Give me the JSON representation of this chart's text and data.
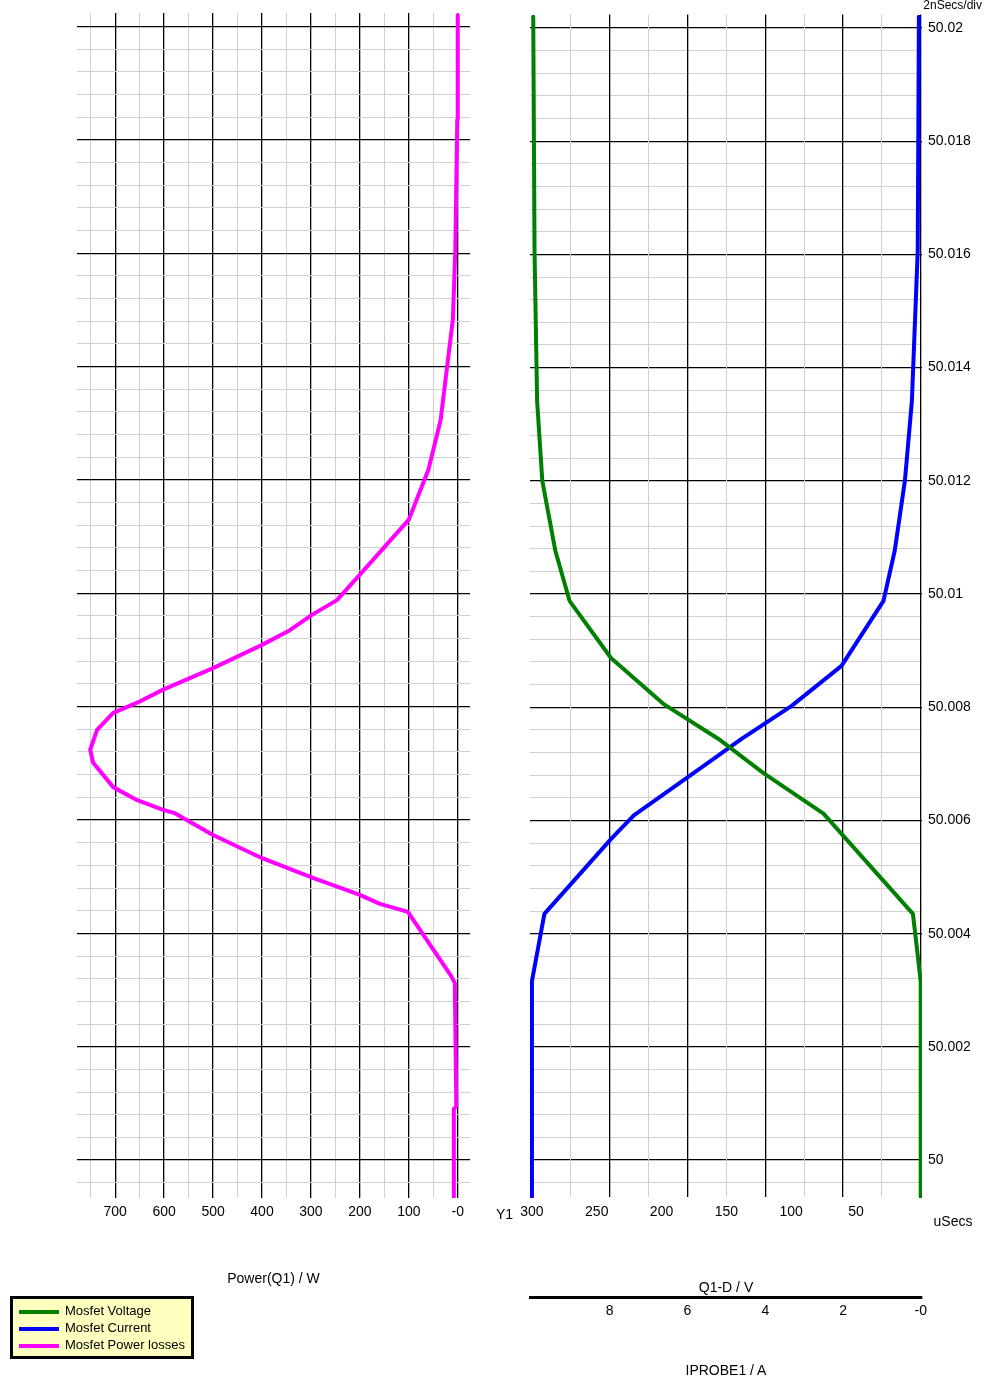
{
  "chart_data": [
    {
      "type": "line",
      "orientation": "horizontal",
      "xlabel": "Power(Q1) / W",
      "legend": "bottom left",
      "grid": true,
      "tick_labels": "x",
      "xlim": [
        778,
        -25
      ],
      "ylim": [
        49.99933,
        50.02024
      ],
      "xticks": [
        {
          "value": 0,
          "label": "-0"
        },
        {
          "value": 50,
          "label": null
        },
        100,
        {
          "value": 150,
          "label": null
        },
        200,
        {
          "value": 250,
          "label": null
        },
        300,
        {
          "value": 350,
          "label": null
        },
        400,
        {
          "value": 450,
          "label": null
        },
        500,
        {
          "value": 550,
          "label": null
        },
        600,
        {
          "value": 650,
          "label": null
        },
        700,
        {
          "value": 750,
          "label": null
        }
      ],
      "yticks": [
        {
          "value": 49.9996,
          "label": null
        },
        50,
        {
          "value": 50.0004,
          "label": null
        },
        {
          "value": 50.0008,
          "label": null
        },
        {
          "value": 50.0012,
          "label": null
        },
        {
          "value": 50.0016,
          "label": null
        },
        50.002,
        {
          "value": 50.0024,
          "label": null
        },
        {
          "value": 50.0028,
          "label": null
        },
        {
          "value": 50.0032,
          "label": null
        },
        {
          "value": 50.0036,
          "label": null
        },
        50.004,
        {
          "value": 50.0044,
          "label": null
        },
        {
          "value": 50.0048,
          "label": null
        },
        {
          "value": 50.0052,
          "label": null
        },
        {
          "value": 50.0056,
          "label": null
        },
        50.006,
        {
          "value": 50.0064,
          "label": null
        },
        {
          "value": 50.0068,
          "label": null
        },
        {
          "value": 50.0072,
          "label": null
        },
        {
          "value": 50.0076,
          "label": null
        },
        50.008,
        {
          "value": 50.0084,
          "label": null
        },
        {
          "value": 50.0088,
          "label": null
        },
        {
          "value": 50.0092,
          "label": null
        },
        {
          "value": 50.0096,
          "label": null
        },
        50.01,
        {
          "value": 50.0104,
          "label": null
        },
        {
          "value": 50.0108,
          "label": null
        },
        {
          "value": 50.0112,
          "label": null
        },
        {
          "value": 50.0116,
          "label": null
        },
        50.012,
        {
          "value": 50.0124,
          "label": null
        },
        {
          "value": 50.0128,
          "label": null
        },
        {
          "value": 50.0132,
          "label": null
        },
        {
          "value": 50.0136,
          "label": null
        },
        50.014,
        {
          "value": 50.0144,
          "label": null
        },
        {
          "value": 50.0148,
          "label": null
        },
        {
          "value": 50.0152,
          "label": null
        },
        {
          "value": 50.0156,
          "label": null
        },
        50.016,
        {
          "value": 50.0164,
          "label": null
        },
        {
          "value": 50.0168,
          "label": null
        },
        {
          "value": 50.0172,
          "label": null
        },
        {
          "value": 50.0176,
          "label": null
        },
        50.018,
        {
          "value": 50.0184,
          "label": null
        },
        {
          "value": 50.0188,
          "label": null
        },
        {
          "value": 50.0192,
          "label": null
        },
        {
          "value": 50.0196,
          "label": null
        },
        50.02
      ],
      "series": [
        {
          "name": "Mosfet Power losses",
          "color": "#ff00ff",
          "x": [
            49.99935,
            50.0009,
            50.00095,
            50.00312,
            50.00324,
            50.00438,
            50.00452,
            50.00468,
            50.00498,
            50.00533,
            50.00574,
            50.00612,
            50.00618,
            50.00635,
            50.00658,
            50.00701,
            50.00724,
            50.00759,
            50.00789,
            50.00807,
            50.0083,
            50.00868,
            50.00909,
            50.00935,
            50.00962,
            50.00988,
            50.01033,
            50.0113,
            50.01218,
            50.01306,
            50.01483,
            50.01606,
            50.01836,
            50.0202
          ],
          "values": [
            8,
            8,
            3,
            6,
            13,
            102,
            159,
            200,
            296,
            401,
            501,
            578,
            602,
            655,
            704,
            745,
            751,
            737,
            704,
            655,
            602,
            500,
            400,
            343,
            298,
            247,
            200,
            100,
            60,
            35,
            10,
            5,
            1,
            0
          ]
        }
      ]
    },
    {
      "type": "line",
      "orientation": "horizontal",
      "xlabel": "Q1-D / V",
      "x2label": "IPROBE1 / A",
      "ylabel": "uSecs",
      "legend": "bottom left",
      "grid": true,
      "annotations": [
        "Y1",
        "2nSecs/div"
      ],
      "xlim": [
        301.5,
        -1
      ],
      "x2lim": [
        10.05,
        -0.03
      ],
      "ylim": [
        49.99933,
        50.02024
      ],
      "xticks": [
        50,
        100,
        150,
        200,
        250,
        300
      ],
      "x2ticks": [
        {
          "value": 0,
          "label": "-0"
        },
        {
          "value": 1,
          "label": null
        },
        2,
        {
          "value": 3,
          "label": null
        },
        4,
        {
          "value": 5,
          "label": null
        },
        6,
        {
          "value": 7,
          "label": null
        },
        8,
        {
          "value": 9,
          "label": null
        }
      ],
      "yticks": [
        {
          "value": 49.9996,
          "label": null
        },
        50,
        {
          "value": 50.0004,
          "label": null
        },
        {
          "value": 50.0008,
          "label": null
        },
        {
          "value": 50.0012,
          "label": null
        },
        {
          "value": 50.0016,
          "label": null
        },
        50.002,
        {
          "value": 50.0024,
          "label": null
        },
        {
          "value": 50.0028,
          "label": null
        },
        {
          "value": 50.0032,
          "label": null
        },
        {
          "value": 50.0036,
          "label": null
        },
        50.004,
        {
          "value": 50.0044,
          "label": null
        },
        {
          "value": 50.0048,
          "label": null
        },
        {
          "value": 50.0052,
          "label": null
        },
        {
          "value": 50.0056,
          "label": null
        },
        50.006,
        {
          "value": 50.0064,
          "label": null
        },
        {
          "value": 50.0068,
          "label": null
        },
        {
          "value": 50.0072,
          "label": null
        },
        {
          "value": 50.0076,
          "label": null
        },
        50.008,
        {
          "value": 50.0084,
          "label": null
        },
        {
          "value": 50.0088,
          "label": null
        },
        {
          "value": 50.0092,
          "label": null
        },
        {
          "value": 50.0096,
          "label": null
        },
        50.01,
        {
          "value": 50.0104,
          "label": null
        },
        {
          "value": 50.0108,
          "label": null
        },
        {
          "value": 50.0112,
          "label": null
        },
        {
          "value": 50.0116,
          "label": null
        },
        50.012,
        {
          "value": 50.0124,
          "label": null
        },
        {
          "value": 50.0128,
          "label": null
        },
        {
          "value": 50.0132,
          "label": null
        },
        {
          "value": 50.0136,
          "label": null
        },
        50.014,
        {
          "value": 50.0144,
          "label": null
        },
        {
          "value": 50.0148,
          "label": null
        },
        {
          "value": 50.0152,
          "label": null
        },
        {
          "value": 50.0156,
          "label": null
        },
        50.016,
        {
          "value": 50.0164,
          "label": null
        },
        {
          "value": 50.0168,
          "label": null
        },
        {
          "value": 50.0172,
          "label": null
        },
        {
          "value": 50.0176,
          "label": null
        },
        50.018,
        {
          "value": 50.0184,
          "label": null
        },
        {
          "value": 50.0188,
          "label": null
        },
        {
          "value": 50.0192,
          "label": null
        },
        {
          "value": 50.0196,
          "label": null
        },
        50.02
      ],
      "series": [
        {
          "name": "Mosfet Voltage",
          "color": "#008000",
          "x": [
            49.99935,
            50.00316,
            50.00435,
            50.00612,
            50.00683,
            50.00744,
            50.00805,
            50.00887,
            50.00988,
            50.01077,
            50.012,
            50.01341,
            50.01606,
            50.0202
          ],
          "values": [
            0,
            0,
            6,
            75,
            121,
            156,
            198,
            239,
            271,
            282,
            292,
            296,
            298,
            299
          ]
        },
        {
          "name": "Mosfet Current",
          "color": "#0000ff",
          "axis": "x2",
          "x": [
            49.99935,
            50.00316,
            50.00435,
            50.00567,
            50.00609,
            50.00676,
            50.00744,
            50.00802,
            50.00873,
            50.00988,
            50.01077,
            50.012,
            50.01341,
            50.01606,
            50.0202
          ],
          "values": [
            10,
            10,
            9.68,
            7.97,
            7.38,
            6.0,
            4.61,
            3.33,
            2.04,
            0.96,
            0.67,
            0.41,
            0.23,
            0.08,
            0.05
          ]
        }
      ]
    }
  ]
}
